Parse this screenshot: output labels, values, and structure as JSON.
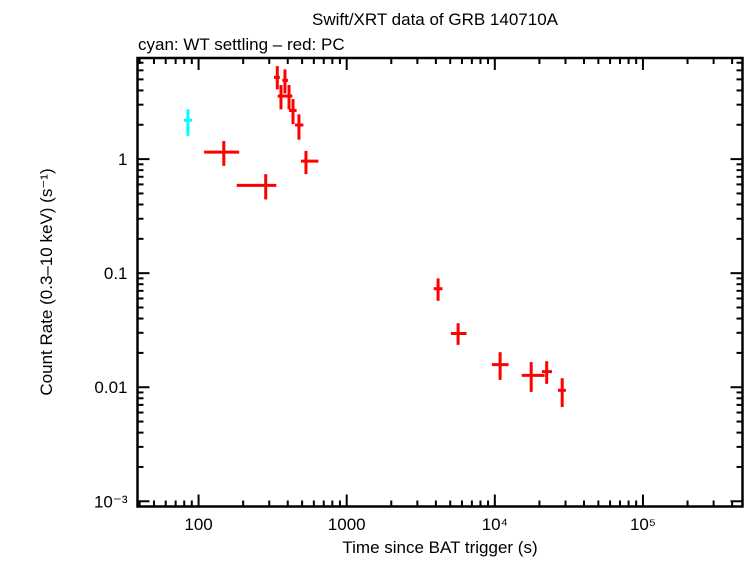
{
  "chart_data": {
    "type": "scatter",
    "title": "Swift/XRT data of GRB 140710A",
    "subtitle": "cyan: WT settling – red: PC",
    "xlabel": "Time since BAT trigger (s)",
    "ylabel": "Count Rate (0.3–10 keV) (s⁻¹)",
    "xscale": "log",
    "yscale": "log",
    "xlim": [
      38.7,
      470000
    ],
    "ylim": [
      0.0009,
      7.7
    ],
    "grid": false,
    "x_ticks": [
      {
        "value": 100,
        "label": "100"
      },
      {
        "value": 1000,
        "label": "1000"
      },
      {
        "value": 10000,
        "label": "10⁴"
      },
      {
        "value": 100000,
        "label": "10⁵"
      }
    ],
    "y_ticks": [
      {
        "value": 1,
        "label": "1"
      },
      {
        "value": 0.1,
        "label": "0.1"
      },
      {
        "value": 0.01,
        "label": "0.01"
      },
      {
        "value": 0.001,
        "label": "10⁻³"
      }
    ],
    "series": [
      {
        "name": "WT settling",
        "color": "#00ffff",
        "points": [
          {
            "x": 84.7,
            "xlo": 79.6,
            "xhi": 90.6,
            "y": 2.19,
            "ylo": 1.6,
            "yhi": 2.73
          }
        ]
      },
      {
        "name": "PC",
        "color": "#ff0000",
        "points": [
          {
            "x": 148,
            "xlo": 109,
            "xhi": 188,
            "y": 1.15,
            "ylo": 0.873,
            "yhi": 1.44
          },
          {
            "x": 284,
            "xlo": 181,
            "xhi": 335,
            "y": 0.588,
            "ylo": 0.443,
            "yhi": 0.738
          },
          {
            "x": 340,
            "xlo": 323,
            "xhi": 354,
            "y": 5.21,
            "ylo": 4.09,
            "yhi": 6.54
          },
          {
            "x": 360,
            "xlo": 342,
            "xhi": 381,
            "y": 3.57,
            "ylo": 2.73,
            "yhi": 4.46
          },
          {
            "x": 383,
            "xlo": 368,
            "xhi": 401,
            "y": 4.9,
            "ylo": 3.77,
            "yhi": 6.12
          },
          {
            "x": 408,
            "xlo": 381,
            "xhi": 430,
            "y": 3.57,
            "ylo": 2.73,
            "yhi": 4.46
          },
          {
            "x": 434,
            "xlo": 408,
            "xhi": 459,
            "y": 2.67,
            "ylo": 2.03,
            "yhi": 3.36
          },
          {
            "x": 476,
            "xlo": 448,
            "xhi": 510,
            "y": 1.99,
            "ylo": 1.48,
            "yhi": 2.47
          },
          {
            "x": 531,
            "xlo": 491,
            "xhi": 644,
            "y": 0.96,
            "ylo": 0.738,
            "yhi": 1.18
          },
          {
            "x": 4140,
            "xlo": 3870,
            "xhi": 4430,
            "y": 0.0731,
            "ylo": 0.0572,
            "yhi": 0.09
          },
          {
            "x": 5650,
            "xlo": 5050,
            "xhi": 6440,
            "y": 0.0296,
            "ylo": 0.0235,
            "yhi": 0.0364
          },
          {
            "x": 10860,
            "xlo": 9550,
            "xhi": 12380,
            "y": 0.0158,
            "ylo": 0.0116,
            "yhi": 0.0203
          },
          {
            "x": 17600,
            "xlo": 15200,
            "xhi": 21700,
            "y": 0.0127,
            "ylo": 0.0091,
            "yhi": 0.0166
          },
          {
            "x": 22400,
            "xlo": 20800,
            "xhi": 24300,
            "y": 0.0137,
            "ylo": 0.0107,
            "yhi": 0.0169
          },
          {
            "x": 28500,
            "xlo": 26700,
            "xhi": 30200,
            "y": 0.0094,
            "ylo": 0.0067,
            "yhi": 0.012
          }
        ]
      }
    ]
  }
}
